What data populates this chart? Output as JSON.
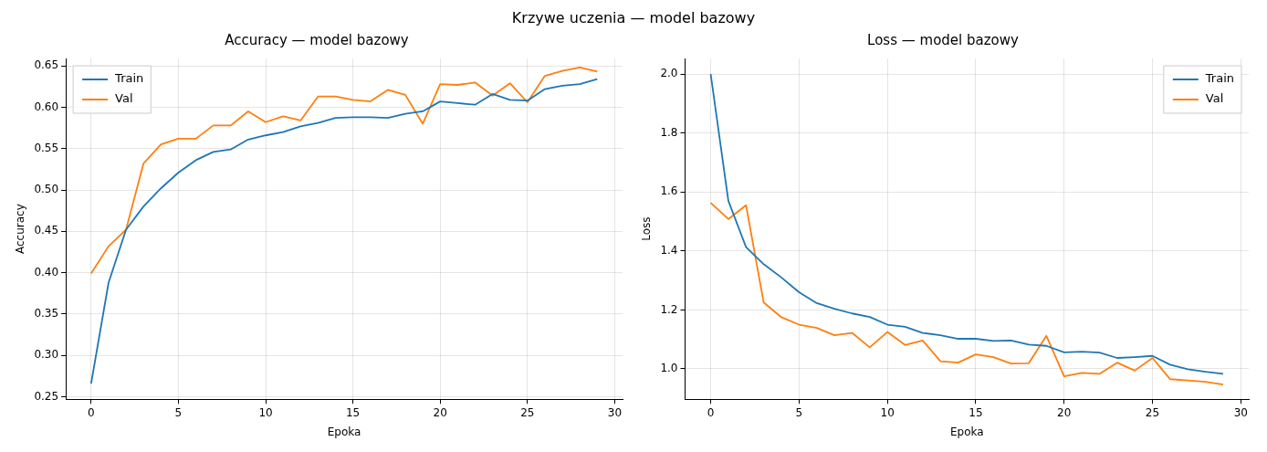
{
  "chart_data": [
    {
      "type": "line",
      "title": "Accuracy — model bazowy",
      "xlabel": "Epoka",
      "ylabel": "Accuracy",
      "annotations": [
        "Krzywe uczenia — model bazowy"
      ],
      "x": [
        0,
        1,
        2,
        3,
        4,
        5,
        6,
        7,
        8,
        9,
        10,
        11,
        12,
        13,
        14,
        15,
        16,
        17,
        18,
        19,
        20,
        21,
        22,
        23,
        24,
        25,
        26,
        27,
        28,
        29
      ],
      "series": [
        {
          "name": "Train",
          "color": "#1f77b4",
          "values": [
            0.266,
            0.388,
            0.452,
            0.48,
            0.502,
            0.521,
            0.536,
            0.546,
            0.549,
            0.561,
            0.566,
            0.57,
            0.577,
            0.581,
            0.587,
            0.588,
            0.588,
            0.587,
            0.592,
            0.595,
            0.607,
            0.605,
            0.603,
            0.616,
            0.609,
            0.608,
            0.622,
            0.626,
            0.628,
            0.634
          ]
        },
        {
          "name": "Val",
          "color": "#ff7f0e",
          "values": [
            0.399,
            0.432,
            0.452,
            0.532,
            0.555,
            0.562,
            0.562,
            0.578,
            0.578,
            0.595,
            0.582,
            0.589,
            0.584,
            0.613,
            0.613,
            0.609,
            0.607,
            0.621,
            0.615,
            0.58,
            0.628,
            0.627,
            0.63,
            0.614,
            0.629,
            0.606,
            0.638,
            0.644,
            0.648,
            0.643
          ]
        }
      ],
      "xlim": [
        -1.45,
        30.45
      ],
      "xticks": [
        0,
        5,
        10,
        15,
        20,
        25,
        30
      ],
      "ylim": [
        0.247,
        0.659
      ],
      "yticks": [
        {
          "value": 0.25,
          "label": "0.25"
        },
        {
          "value": 0.3,
          "label": "0.30"
        },
        {
          "value": 0.35,
          "label": "0.35"
        },
        {
          "value": 0.4,
          "label": "0.40"
        },
        {
          "value": 0.45,
          "label": "0.45"
        },
        {
          "value": 0.5,
          "label": "0.50"
        },
        {
          "value": 0.55,
          "label": "0.55"
        },
        {
          "value": 0.6,
          "label": "0.60"
        },
        {
          "value": 0.65,
          "label": "0.65"
        }
      ],
      "grid": true,
      "legend": "top left",
      "marker": "none",
      "line_style": "solid"
    },
    {
      "type": "line",
      "title": "Loss — model bazowy",
      "xlabel": "Epoka",
      "ylabel": "Loss",
      "x": [
        0,
        1,
        2,
        3,
        4,
        5,
        6,
        7,
        8,
        9,
        10,
        11,
        12,
        13,
        14,
        15,
        16,
        17,
        18,
        19,
        20,
        21,
        22,
        23,
        24,
        25,
        26,
        27,
        28,
        29
      ],
      "series": [
        {
          "name": "Train",
          "color": "#1f77b4",
          "values": [
            2.0,
            1.57,
            1.413,
            1.355,
            1.31,
            1.26,
            1.223,
            1.204,
            1.188,
            1.176,
            1.15,
            1.143,
            1.122,
            1.114,
            1.102,
            1.102,
            1.095,
            1.096,
            1.082,
            1.078,
            1.056,
            1.058,
            1.055,
            1.037,
            1.04,
            1.044,
            1.014,
            0.999,
            0.99,
            0.983
          ]
        },
        {
          "name": "Val",
          "color": "#ff7f0e",
          "values": [
            1.563,
            1.508,
            1.555,
            1.225,
            1.175,
            1.15,
            1.139,
            1.114,
            1.122,
            1.073,
            1.125,
            1.081,
            1.096,
            1.026,
            1.021,
            1.049,
            1.04,
            1.018,
            1.019,
            1.112,
            0.975,
            0.986,
            0.983,
            1.021,
            0.994,
            1.037,
            0.965,
            0.961,
            0.956,
            0.947
          ]
        }
      ],
      "xlim": [
        -1.45,
        30.45
      ],
      "xticks": [
        0,
        5,
        10,
        15,
        20,
        25,
        30
      ],
      "ylim": [
        0.897,
        2.053
      ],
      "yticks": [
        {
          "value": 1.0,
          "label": "1.0"
        },
        {
          "value": 1.2,
          "label": "1.2"
        },
        {
          "value": 1.4,
          "label": "1.4"
        },
        {
          "value": 1.6,
          "label": "1.6"
        },
        {
          "value": 1.8,
          "label": "1.8"
        },
        {
          "value": 2.0,
          "label": "2.0"
        }
      ],
      "grid": true,
      "legend": "top right",
      "marker": "none",
      "line_style": "solid"
    }
  ]
}
